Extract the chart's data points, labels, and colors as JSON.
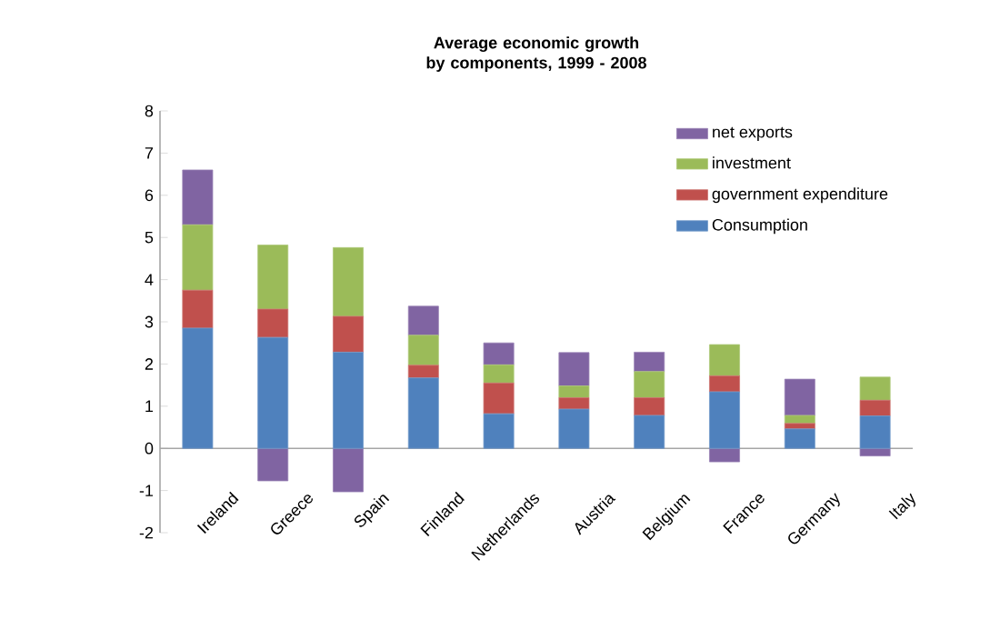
{
  "chart_data": {
    "type": "bar",
    "stacked": true,
    "title": "Average economic growth by components, 1999 - 2008",
    "categories": [
      "Ireland",
      "Greece",
      "Spain",
      "Finland",
      "Netherlands",
      "Austria",
      "Belgium",
      "France",
      "Germany",
      "Italy"
    ],
    "series": [
      {
        "name": "Consumption",
        "color": "#4f81bd",
        "values": [
          2.85,
          2.63,
          2.28,
          1.67,
          0.82,
          0.93,
          0.78,
          1.34,
          0.46,
          0.77
        ]
      },
      {
        "name": "government expenditure",
        "color": "#c0504d",
        "values": [
          0.9,
          0.67,
          0.85,
          0.3,
          0.73,
          0.27,
          0.42,
          0.38,
          0.13,
          0.37
        ]
      },
      {
        "name": "investment",
        "color": "#9bbb59",
        "values": [
          1.55,
          1.52,
          1.63,
          0.71,
          0.43,
          0.28,
          0.62,
          0.74,
          0.19,
          0.55
        ]
      },
      {
        "name": "net exports",
        "color": "#8064a2",
        "values": [
          1.3,
          -0.77,
          -1.03,
          0.69,
          0.52,
          0.79,
          0.46,
          -0.32,
          0.86,
          -0.18
        ]
      }
    ],
    "ylim": [
      -2,
      8
    ],
    "yticks": [
      -2,
      -1,
      0,
      1,
      2,
      3,
      4,
      5,
      6,
      7,
      8
    ],
    "legend": "top right"
  }
}
